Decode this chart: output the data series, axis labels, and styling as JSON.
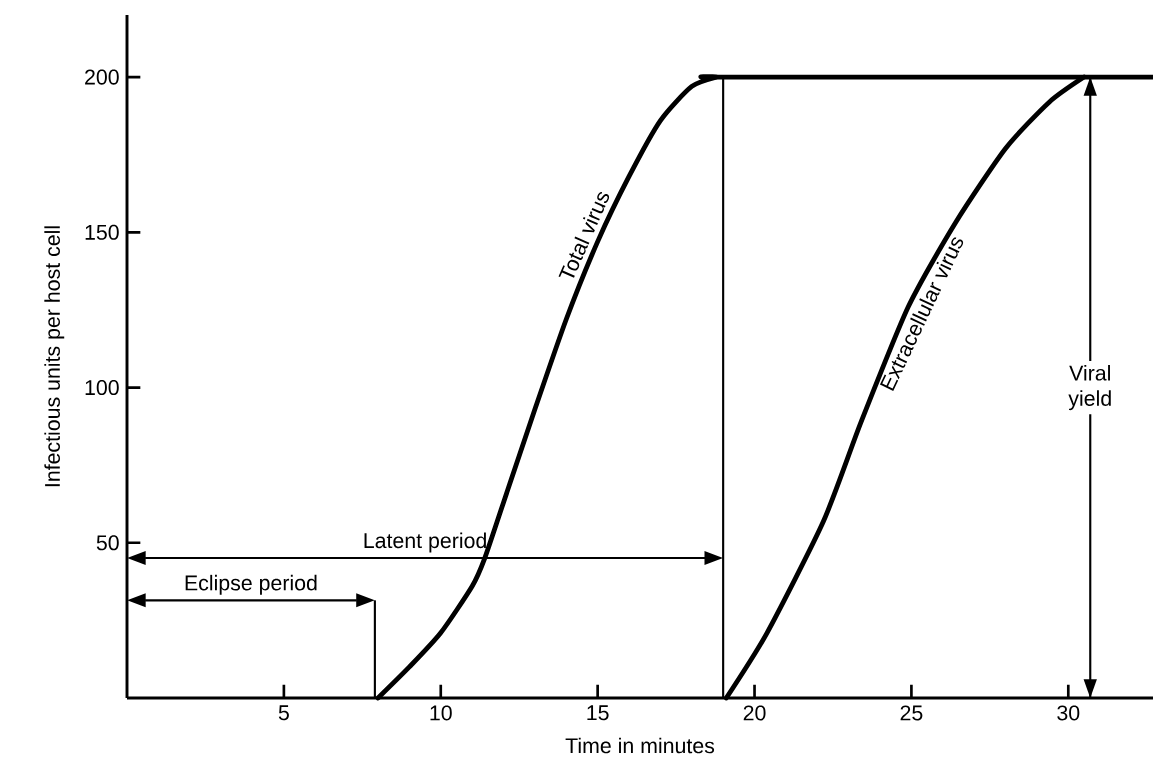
{
  "chart_data": {
    "type": "line",
    "xlabel": "Time in minutes",
    "ylabel": "Infectious units per host cell",
    "xlim": [
      0,
      32.7
    ],
    "ylim": [
      0,
      220
    ],
    "xticks": [
      5,
      10,
      15,
      20,
      25,
      30
    ],
    "yticks": [
      50,
      100,
      150,
      200
    ],
    "grid": false,
    "legend": false,
    "marker": "none",
    "line_style": "solid",
    "series": [
      {
        "name": "Total virus",
        "color": "#000000",
        "x": [
          8,
          9,
          10,
          11,
          11.4,
          12,
          13,
          14,
          15,
          16,
          17,
          18,
          18.8,
          19,
          32.7
        ],
        "values": [
          0,
          10,
          21,
          36,
          45,
          63,
          93,
          122,
          147,
          168,
          186,
          197,
          200,
          200,
          200
        ]
      },
      {
        "name": "Extracellular virus",
        "color": "#000000",
        "x": [
          19.1,
          20.4,
          22.2,
          23.4,
          24.9,
          26.4,
          28,
          29.4,
          30.5
        ],
        "values": [
          0,
          21,
          57,
          89,
          126,
          153,
          177,
          192,
          200
        ]
      }
    ],
    "ref_lines": [
      {
        "axis": "x",
        "value": 19
      },
      {
        "axis": "x",
        "value": 7.9
      },
      {
        "axis": "x",
        "value": 30.7,
        "label": "Viral yield"
      }
    ],
    "annotations": [
      "Latent period",
      "Eclipse period"
    ]
  }
}
